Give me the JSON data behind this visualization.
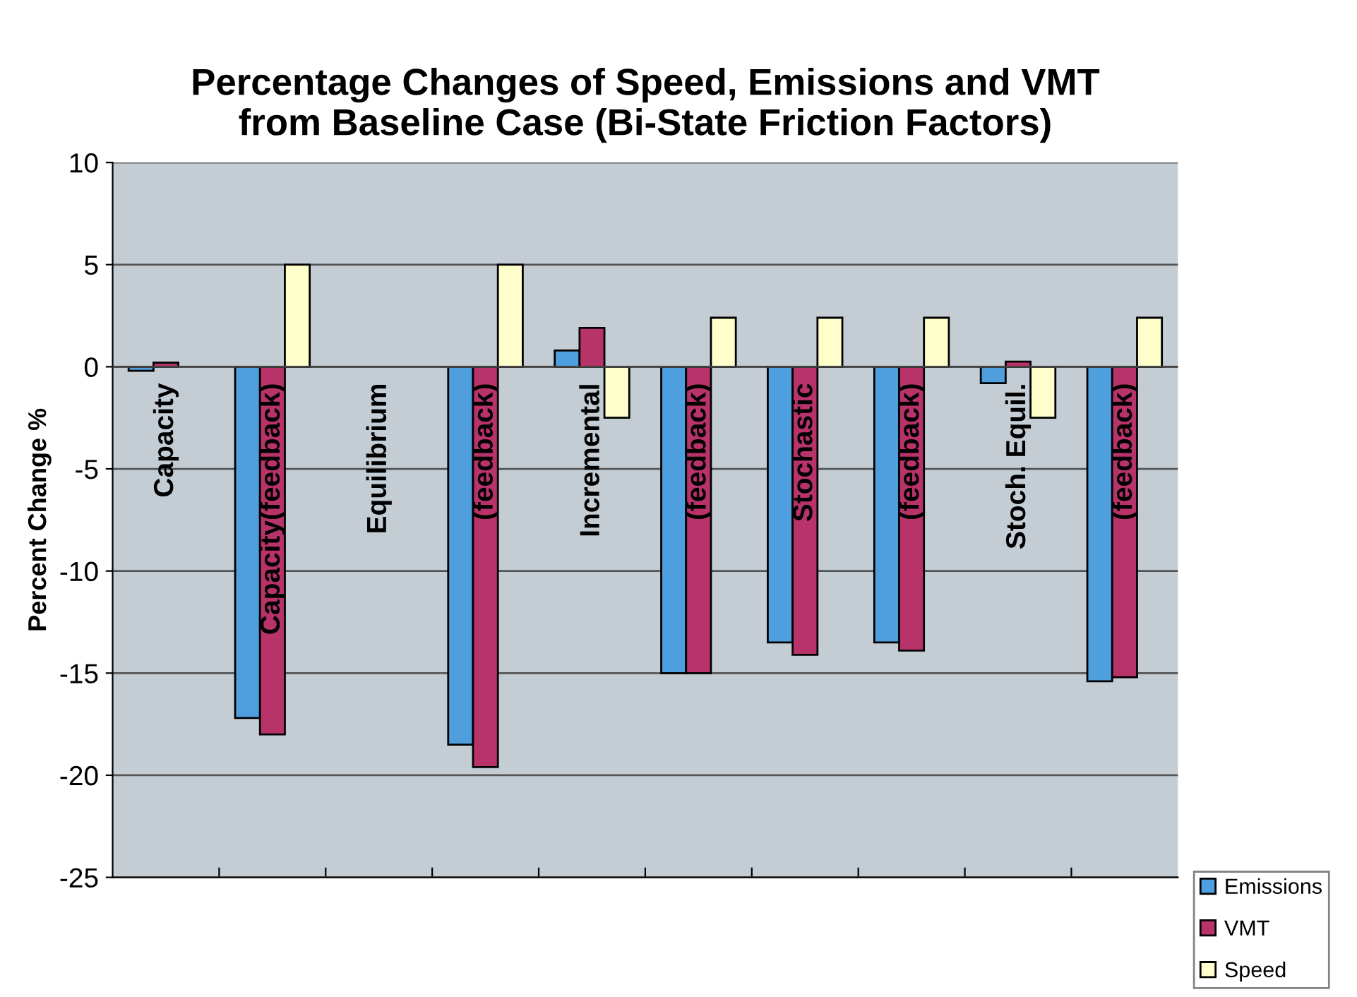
{
  "chart_data": {
    "type": "bar",
    "title": "Percentage Changes of Speed, Emissions and VMT\nfrom Baseline Case (Bi-State Friction Factors)",
    "ylabel": "Percent Change %",
    "categories": [
      "Capacity",
      "Capacity(feedback)",
      "Equilibrium",
      "(feedback)",
      "Incremental",
      "(feedback)",
      "Stochastic",
      "(feedback)",
      "Stoch. Equil.",
      "(feedback)"
    ],
    "series": [
      {
        "name": "Emissions",
        "color": "#4f9fdf",
        "values": [
          -0.2,
          -17.2,
          null,
          -18.5,
          0.8,
          -15,
          -13.5,
          -13.5,
          -0.8,
          -15.4
        ]
      },
      {
        "name": "VMT",
        "color": "#b8336a",
        "values": [
          0.2,
          -18,
          null,
          -19.6,
          1.9,
          -15,
          -14.1,
          -13.9,
          0.25,
          -15.2
        ]
      },
      {
        "name": "Speed",
        "color": "#ffffcc",
        "values": [
          null,
          5,
          null,
          5,
          -2.5,
          2.4,
          2.4,
          2.4,
          -2.5,
          2.4
        ]
      }
    ],
    "ylim": [
      -25,
      10
    ],
    "yticks": [
      -25,
      -20,
      -15,
      -10,
      -5,
      0,
      5,
      10
    ],
    "grid": "y",
    "legend": "bottom right",
    "tick_labels": "y"
  }
}
